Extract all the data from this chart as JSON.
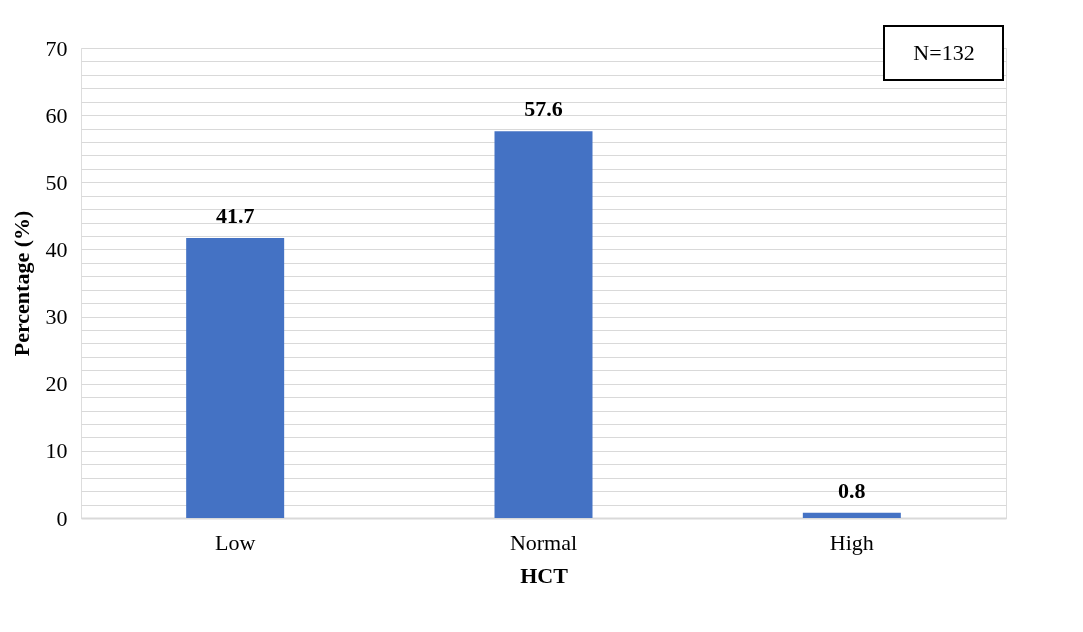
{
  "chart_data": {
    "type": "bar",
    "xlabel": "HCT",
    "ylabel": "Percentage (%)",
    "categories": [
      "Low",
      "Normal",
      "High"
    ],
    "values": [
      41.7,
      57.6,
      0.8
    ],
    "color": "#4472c4",
    "data_labels": true,
    "ylim": [
      0,
      70
    ],
    "yticks": [
      0,
      {
        "value": 2,
        "label": null
      },
      {
        "value": 4,
        "label": null
      },
      {
        "value": 6,
        "label": null
      },
      {
        "value": 8,
        "label": null
      },
      10,
      {
        "value": 12,
        "label": null
      },
      {
        "value": 14,
        "label": null
      },
      {
        "value": 16,
        "label": null
      },
      {
        "value": 18,
        "label": null
      },
      20,
      {
        "value": 22,
        "label": null
      },
      {
        "value": 24,
        "label": null
      },
      {
        "value": 26,
        "label": null
      },
      {
        "value": 28,
        "label": null
      },
      30,
      {
        "value": 32,
        "label": null
      },
      {
        "value": 34,
        "label": null
      },
      {
        "value": 36,
        "label": null
      },
      {
        "value": 38,
        "label": null
      },
      40,
      {
        "value": 42,
        "label": null
      },
      {
        "value": 44,
        "label": null
      },
      {
        "value": 46,
        "label": null
      },
      {
        "value": 48,
        "label": null
      },
      50,
      {
        "value": 52,
        "label": null
      },
      {
        "value": 54,
        "label": null
      },
      {
        "value": 56,
        "label": null
      },
      {
        "value": 58,
        "label": null
      },
      60,
      {
        "value": 62,
        "label": null
      },
      {
        "value": 64,
        "label": null
      },
      {
        "value": 66,
        "label": null
      },
      {
        "value": 68,
        "label": null
      },
      70
    ],
    "grid": "y",
    "annotations": [
      "N=132"
    ]
  }
}
